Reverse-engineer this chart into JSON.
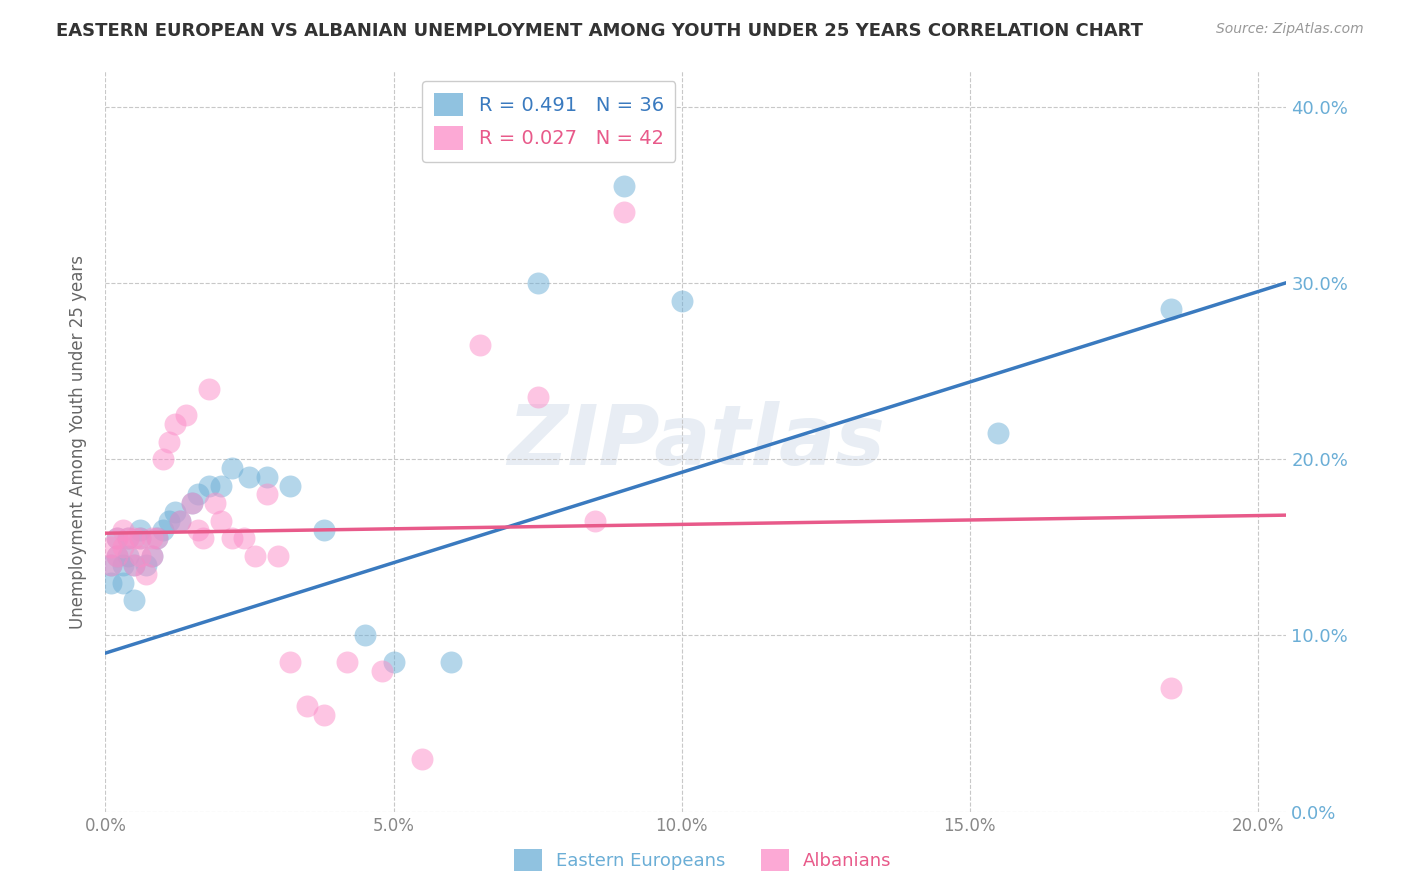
{
  "title": "EASTERN EUROPEAN VS ALBANIAN UNEMPLOYMENT AMONG YOUTH UNDER 25 YEARS CORRELATION CHART",
  "source": "Source: ZipAtlas.com",
  "ylabel": "Unemployment Among Youth under 25 years",
  "xlim": [
    0.0,
    0.205
  ],
  "ylim": [
    0.0,
    0.42
  ],
  "watermark": "ZIPatlas",
  "legend_entry_blue": "R = 0.491   N = 36",
  "legend_entry_pink": "R = 0.027   N = 42",
  "eastern_european_x": [
    0.001,
    0.001,
    0.002,
    0.002,
    0.003,
    0.003,
    0.004,
    0.004,
    0.005,
    0.005,
    0.006,
    0.006,
    0.007,
    0.008,
    0.009,
    0.01,
    0.011,
    0.012,
    0.013,
    0.015,
    0.016,
    0.018,
    0.02,
    0.022,
    0.025,
    0.028,
    0.032,
    0.038,
    0.045,
    0.05,
    0.06,
    0.075,
    0.09,
    0.1,
    0.155,
    0.185
  ],
  "eastern_european_y": [
    0.14,
    0.13,
    0.145,
    0.155,
    0.13,
    0.14,
    0.145,
    0.155,
    0.14,
    0.12,
    0.155,
    0.16,
    0.14,
    0.145,
    0.155,
    0.16,
    0.165,
    0.17,
    0.165,
    0.175,
    0.18,
    0.185,
    0.185,
    0.195,
    0.19,
    0.19,
    0.185,
    0.16,
    0.1,
    0.085,
    0.085,
    0.3,
    0.355,
    0.29,
    0.215,
    0.285
  ],
  "albanian_x": [
    0.001,
    0.001,
    0.002,
    0.002,
    0.003,
    0.003,
    0.004,
    0.005,
    0.005,
    0.006,
    0.006,
    0.007,
    0.008,
    0.008,
    0.009,
    0.01,
    0.011,
    0.012,
    0.013,
    0.014,
    0.015,
    0.016,
    0.017,
    0.018,
    0.019,
    0.02,
    0.022,
    0.024,
    0.026,
    0.028,
    0.03,
    0.032,
    0.035,
    0.038,
    0.042,
    0.048,
    0.055,
    0.065,
    0.075,
    0.085,
    0.09,
    0.185
  ],
  "albanian_y": [
    0.15,
    0.14,
    0.155,
    0.145,
    0.15,
    0.16,
    0.155,
    0.14,
    0.155,
    0.145,
    0.155,
    0.135,
    0.155,
    0.145,
    0.155,
    0.2,
    0.21,
    0.22,
    0.165,
    0.225,
    0.175,
    0.16,
    0.155,
    0.24,
    0.175,
    0.165,
    0.155,
    0.155,
    0.145,
    0.18,
    0.145,
    0.085,
    0.06,
    0.055,
    0.085,
    0.08,
    0.03,
    0.265,
    0.235,
    0.165,
    0.34,
    0.07
  ],
  "blue_dot_color": "#6baed6",
  "pink_dot_color": "#fc8dc8",
  "blue_line_color": "#3a7abf",
  "pink_line_color": "#e85a8a",
  "background_color": "#ffffff",
  "grid_color": "#c8c8c8",
  "title_color": "#333333",
  "right_axis_color": "#6baed6",
  "yticks": [
    0.0,
    0.1,
    0.2,
    0.3,
    0.4
  ],
  "xticks": [
    0.0,
    0.05,
    0.1,
    0.15,
    0.2
  ]
}
